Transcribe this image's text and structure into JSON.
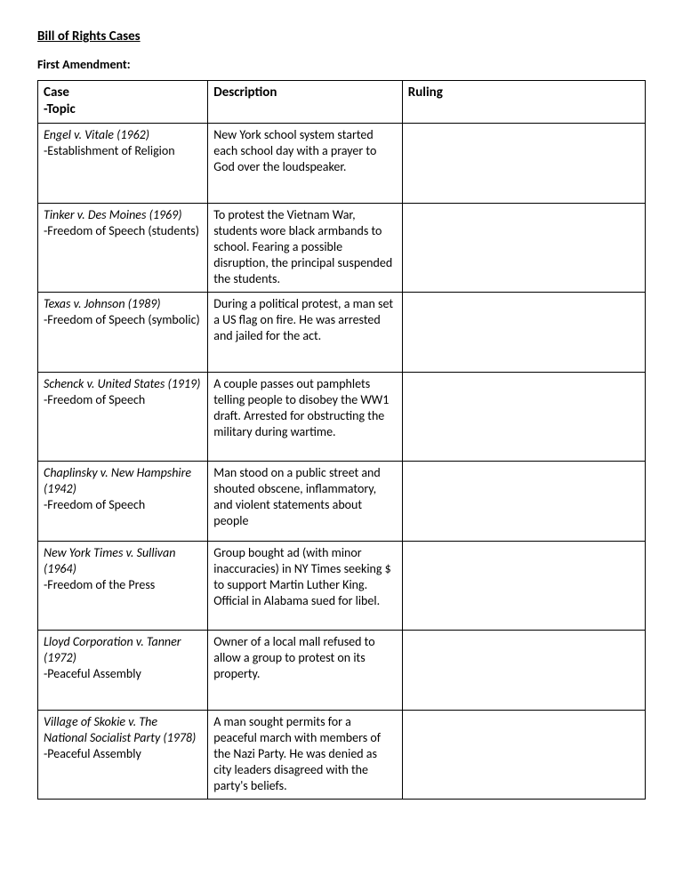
{
  "title": "Bill of Rights Cases",
  "subtitle": "First Amendment:",
  "headers": {
    "col1a": "Case",
    "col1b": "-Topic",
    "col2": "Description",
    "col3": "Ruling"
  },
  "rows": [
    {
      "case": "Engel v. Vitale (1962)",
      "topic": "-Establishment of Religion",
      "desc": "New York school system started each school day with a prayer to God over the loudspeaker.",
      "ruling": "",
      "minh": 90
    },
    {
      "case": "Tinker v. Des Moines (1969)",
      "topic": "-Freedom of Speech (students)",
      "desc": "To protest the Vietnam War, students wore black armbands to school.  Fearing a possible disruption, the principal suspended the students.",
      "ruling": "",
      "minh": 0
    },
    {
      "case": "Texas v. Johnson (1989)",
      "topic": "-Freedom of Speech (symbolic)",
      "desc": "During a political protest, a man set a US flag on fire.  He was arrested and jailed for the act.",
      "ruling": "",
      "minh": 90
    },
    {
      "case": "Schenck v. United States (1919)",
      "topic": "-Freedom of Speech",
      "desc": "A couple passes out pamphlets telling people to disobey the WW1 draft.  Arrested for obstructing the military during wartime.",
      "ruling": "",
      "minh": 100
    },
    {
      "case": "Chaplinsky v. New Hampshire (1942)",
      "topic": "-Freedom of Speech",
      "desc": "Man stood on a public street and shouted obscene, inflammatory, and violent statements about people",
      "ruling": "",
      "minh": 90
    },
    {
      "case": "New York Times v. Sullivan (1964)",
      "topic": "-Freedom of the Press",
      "desc": "Group bought ad (with minor inaccuracies) in NY Times seeking $ to support Martin Luther King.  Official in Alabama sued for libel.",
      "ruling": "",
      "minh": 100
    },
    {
      "case": "Lloyd Corporation v. Tanner (1972)",
      "topic": "-Peaceful Assembly",
      "desc": "Owner of a local mall refused to allow a group to protest on its property.",
      "ruling": "",
      "minh": 90
    },
    {
      "case": "Village of Skokie v. The National Socialist Party (1978)",
      "topic": "-Peaceful Assembly",
      "desc": "A man sought permits for a peaceful march with members of the Nazi Party.  He was denied as city leaders disagreed with the party's beliefs.",
      "ruling": "",
      "minh": 0
    }
  ]
}
